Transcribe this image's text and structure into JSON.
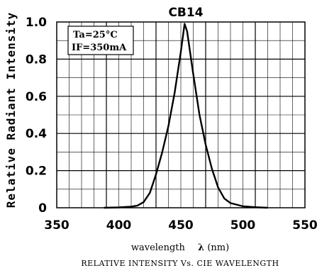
{
  "chart_data": {
    "type": "line",
    "title": "CB14",
    "xlabel": "wavelength",
    "xlabel_symbol": "λ",
    "xlabel_unit": "(nm)",
    "ylabel": "Relative Radiant Intensity",
    "caption": "RELATIVE INTENSITY Vs. CIE WAVELENGTH",
    "annotations": [
      "Ta=25°C",
      "IF=350mA"
    ],
    "xlim": [
      350,
      550
    ],
    "ylim": [
      0,
      1.0
    ],
    "x_ticks": [
      "350",
      "400",
      "450",
      "500",
      "550"
    ],
    "y_ticks": [
      "0",
      "0.2",
      "0.4",
      "0.6",
      "0.8",
      "1.0"
    ],
    "grid": true,
    "series": [
      {
        "x": [
          388,
          400,
          410,
          415,
          420,
          425,
          430,
          435,
          440,
          445,
          450,
          453,
          455,
          460,
          465,
          470,
          475,
          480,
          485,
          490,
          500,
          510,
          520
        ],
        "y": [
          0,
          0.002,
          0.006,
          0.012,
          0.03,
          0.08,
          0.18,
          0.3,
          0.44,
          0.62,
          0.84,
          0.99,
          0.95,
          0.72,
          0.5,
          0.34,
          0.21,
          0.11,
          0.05,
          0.025,
          0.008,
          0.003,
          0
        ]
      }
    ]
  }
}
